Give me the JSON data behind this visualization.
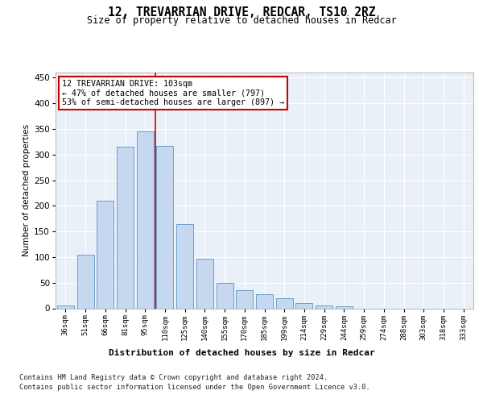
{
  "title1": "12, TREVARRIAN DRIVE, REDCAR, TS10 2RZ",
  "title2": "Size of property relative to detached houses in Redcar",
  "xlabel": "Distribution of detached houses by size in Redcar",
  "ylabel": "Number of detached properties",
  "categories": [
    "36sqm",
    "51sqm",
    "66sqm",
    "81sqm",
    "95sqm",
    "110sqm",
    "125sqm",
    "140sqm",
    "155sqm",
    "170sqm",
    "185sqm",
    "199sqm",
    "214sqm",
    "229sqm",
    "244sqm",
    "259sqm",
    "274sqm",
    "288sqm",
    "303sqm",
    "318sqm",
    "333sqm"
  ],
  "values": [
    5,
    105,
    210,
    315,
    345,
    317,
    165,
    97,
    50,
    35,
    28,
    19,
    10,
    5,
    4,
    0,
    0,
    0,
    0,
    0,
    0
  ],
  "bar_color": "#c5d8f0",
  "bar_edge_color": "#6a9fcb",
  "vline_x": 4.5,
  "vline_color": "#cc0000",
  "annotation_line1": "12 TREVARRIAN DRIVE: 103sqm",
  "annotation_line2": "← 47% of detached houses are smaller (797)",
  "annotation_line3": "53% of semi-detached houses are larger (897) →",
  "annotation_box_color": "#cc0000",
  "annotation_bg": "#ffffff",
  "ylim": [
    0,
    460
  ],
  "yticks": [
    0,
    50,
    100,
    150,
    200,
    250,
    300,
    350,
    400,
    450
  ],
  "footer_line1": "Contains HM Land Registry data © Crown copyright and database right 2024.",
  "footer_line2": "Contains public sector information licensed under the Open Government Licence v3.0.",
  "plot_bg_color": "#eaf0f8"
}
